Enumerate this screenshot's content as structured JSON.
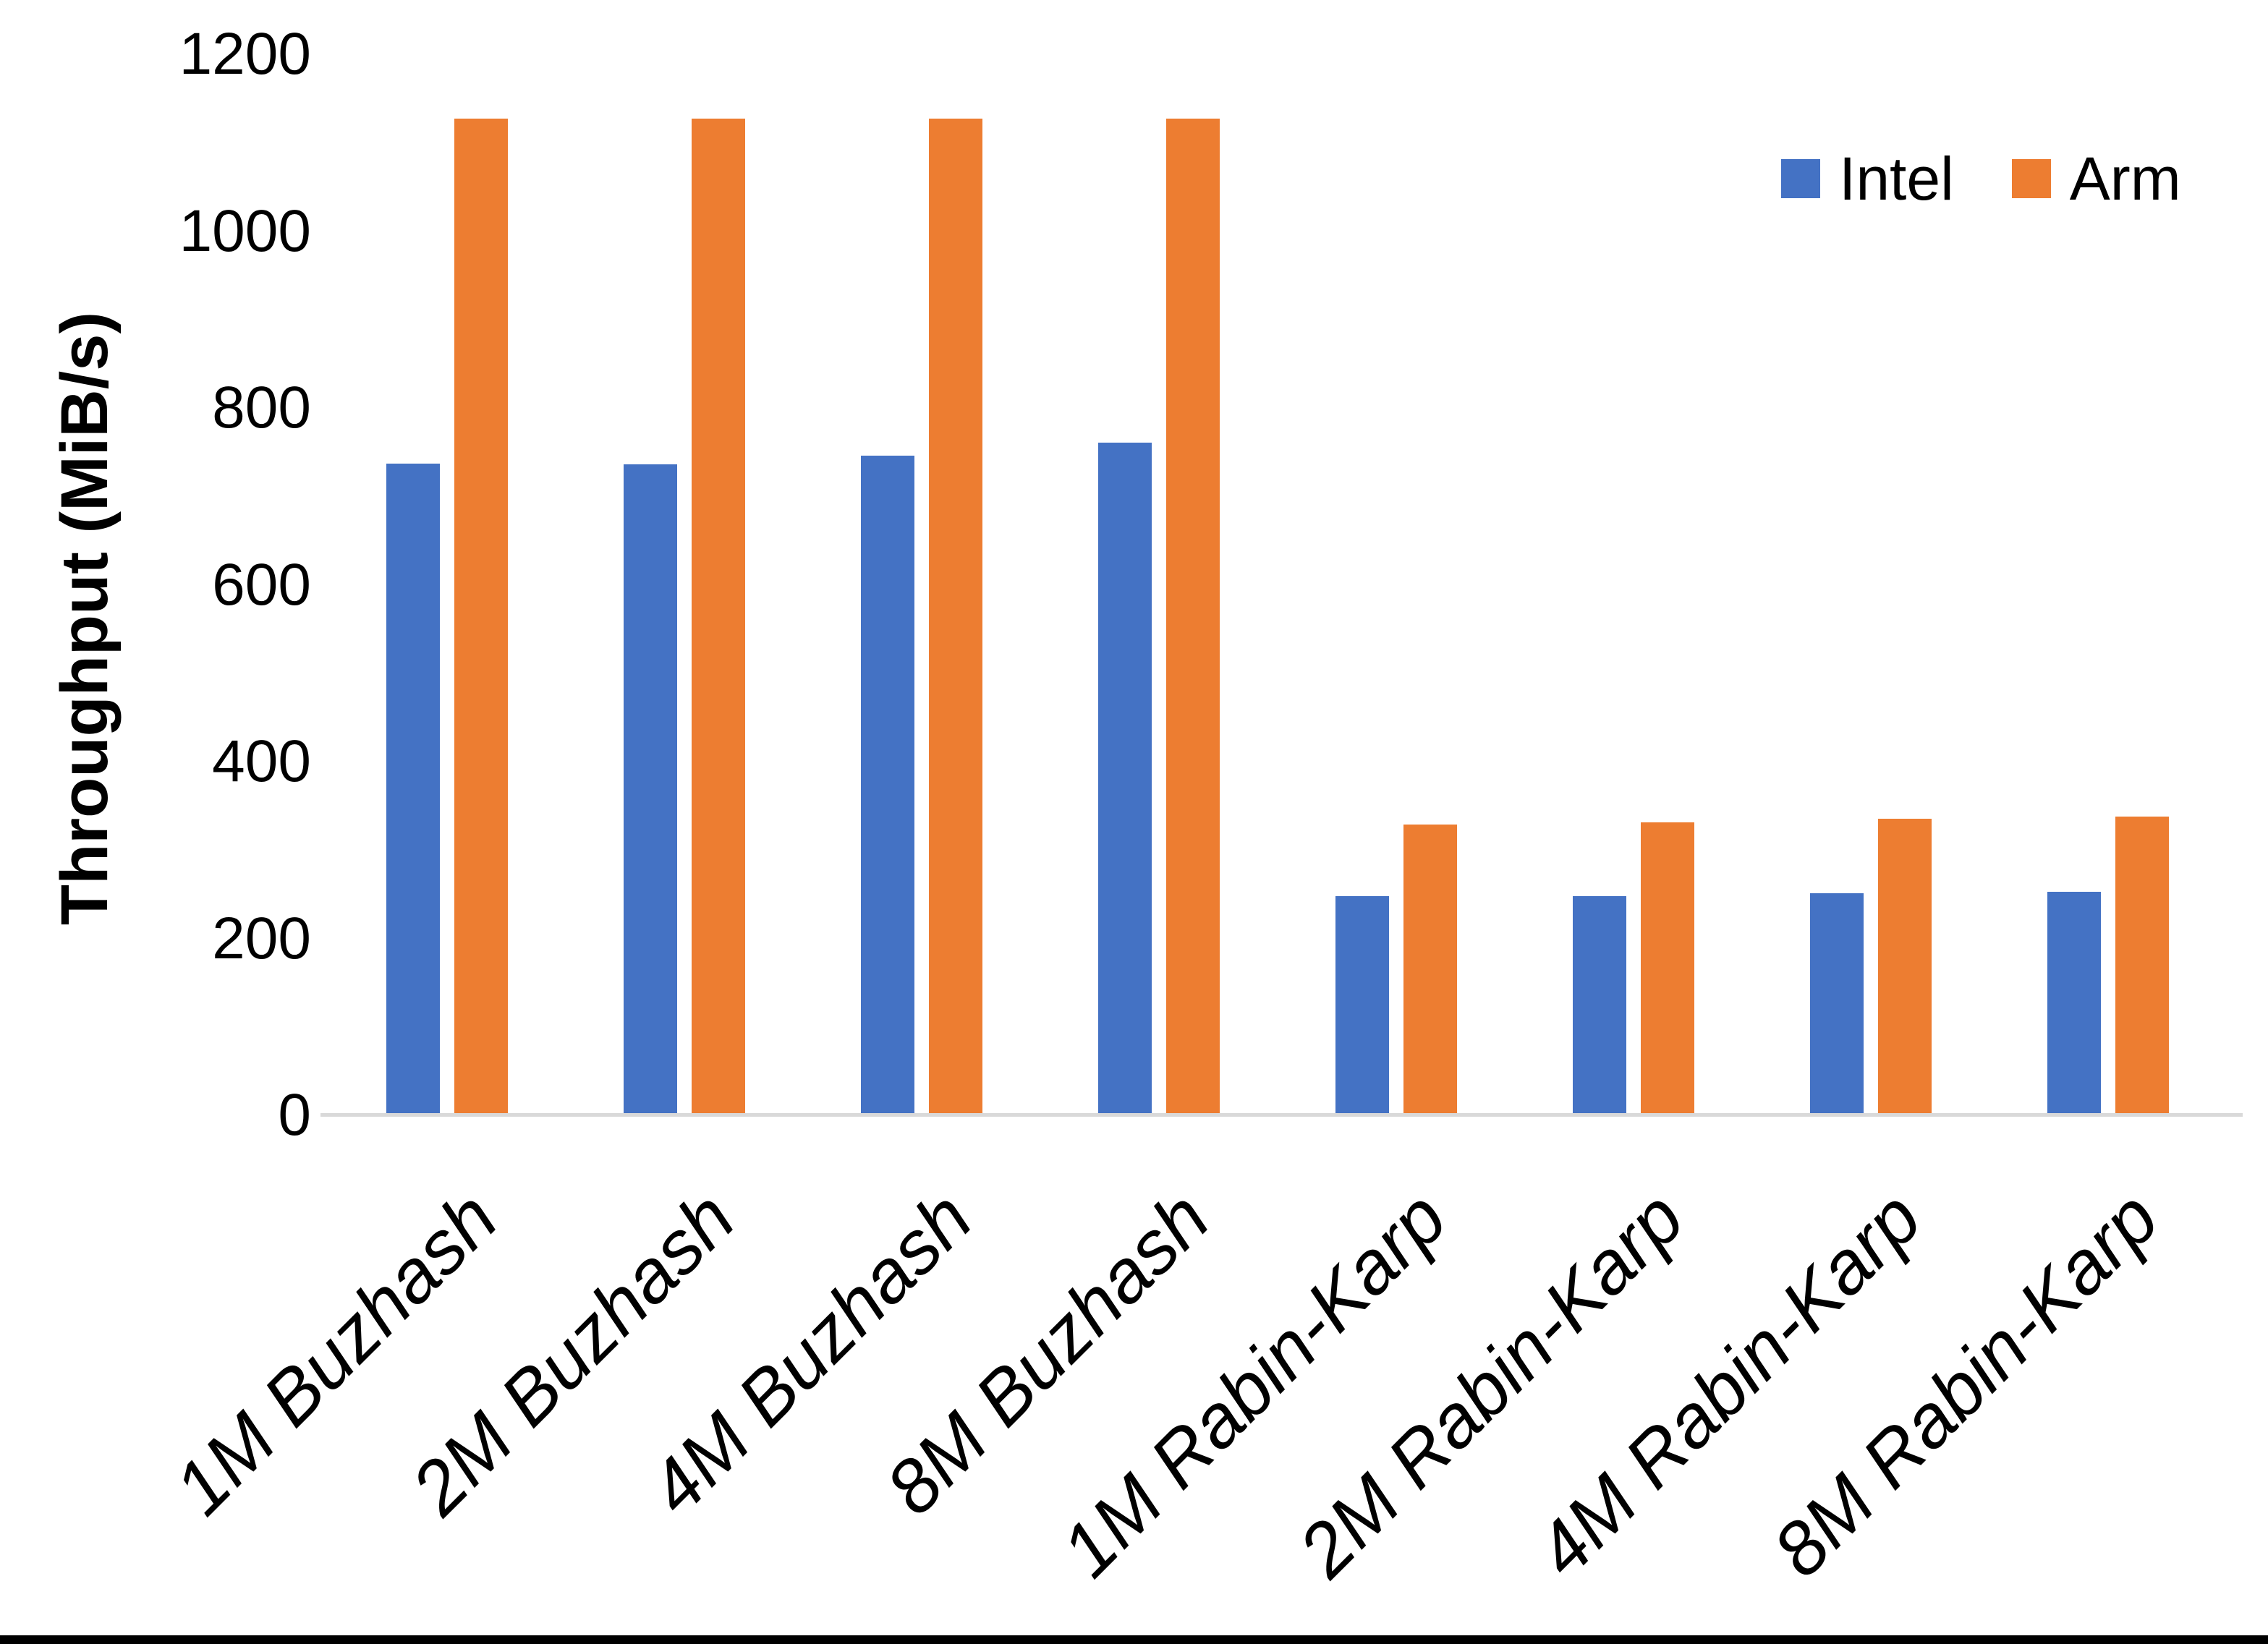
{
  "chart_data": {
    "type": "bar",
    "title": "",
    "ylabel": "Throughput (MiB/s)",
    "xlabel": "",
    "ylim": [
      0,
      1200
    ],
    "yticks": [
      0,
      200,
      400,
      600,
      800,
      1000,
      1200
    ],
    "grid": false,
    "legend_position": "top-right",
    "categories": [
      "1M Buzhash",
      "2M Buzhash",
      "4M Buzhash",
      "8M Buzhash",
      "1M Rabin-Karp",
      "2M Rabin-Karp",
      "4M Rabin-Karp",
      "8M Rabin-Karp"
    ],
    "series": [
      {
        "name": "Intel",
        "color": "#4472C4",
        "values": [
          737,
          736,
          746,
          761,
          248,
          248,
          251,
          253
        ]
      },
      {
        "name": "Arm",
        "color": "#ED7D31",
        "values": [
          1127,
          1127,
          1127,
          1127,
          329,
          331,
          335,
          338
        ]
      }
    ],
    "axis_line_color": "#D9D9D9"
  }
}
